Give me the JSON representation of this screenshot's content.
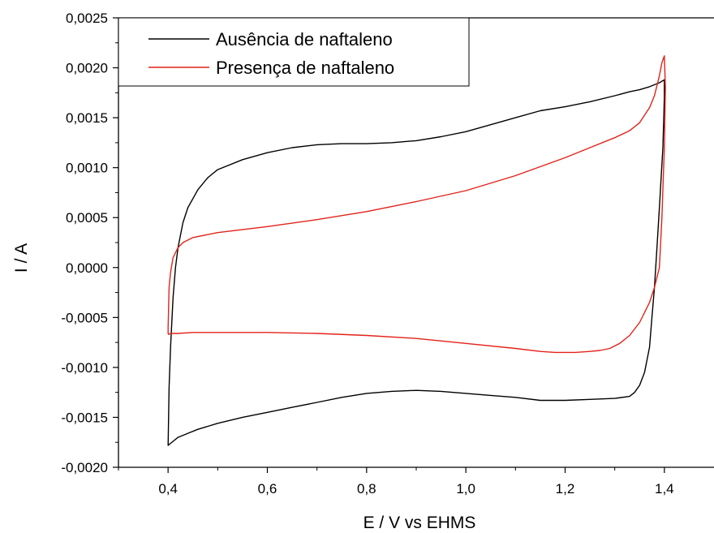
{
  "chart_data": {
    "type": "line",
    "title": "",
    "xlabel": "E / V vs EHMS",
    "ylabel": "I / A",
    "xlim": [
      0.3,
      1.5
    ],
    "ylim": [
      -0.002,
      0.0025
    ],
    "x_ticks": [
      0.4,
      0.6,
      0.8,
      1.0,
      1.2,
      1.4
    ],
    "x_tick_labels": [
      "0,4",
      "0,6",
      "0,8",
      "1,0",
      "1,2",
      "1,4"
    ],
    "y_ticks": [
      -0.002,
      -0.0015,
      -0.001,
      -0.0005,
      0.0,
      0.0005,
      0.001,
      0.0015,
      0.002,
      0.0025
    ],
    "y_tick_labels": [
      "-0,0020",
      "-0,0015",
      "-0,0010",
      "-0,0005",
      "0,0000",
      "0,0005",
      "0,0010",
      "0,0015",
      "0,0020",
      "0,0025"
    ],
    "grid": false,
    "legend_position": "top-left",
    "series": [
      {
        "name": "Ausência de naftaleno",
        "color": "#000000",
        "x": [
          0.4,
          0.402,
          0.405,
          0.41,
          0.415,
          0.42,
          0.43,
          0.44,
          0.46,
          0.48,
          0.5,
          0.55,
          0.6,
          0.65,
          0.7,
          0.75,
          0.8,
          0.85,
          0.9,
          0.95,
          1.0,
          1.05,
          1.1,
          1.15,
          1.2,
          1.25,
          1.3,
          1.33,
          1.35,
          1.37,
          1.39,
          1.4,
          1.4,
          1.397,
          1.39,
          1.385,
          1.38,
          1.375,
          1.37,
          1.36,
          1.35,
          1.34,
          1.33,
          1.3,
          1.25,
          1.2,
          1.15,
          1.1,
          1.05,
          1.0,
          0.95,
          0.9,
          0.85,
          0.8,
          0.75,
          0.7,
          0.65,
          0.6,
          0.55,
          0.5,
          0.48,
          0.46,
          0.44,
          0.42,
          0.41,
          0.405,
          0.4,
          0.4,
          0.401
        ],
        "y": [
          -0.00178,
          -0.0012,
          -0.0008,
          -0.0003,
          0.0,
          0.0002,
          0.00045,
          0.0006,
          0.00078,
          0.0009,
          0.00098,
          0.00108,
          0.00115,
          0.0012,
          0.00123,
          0.00124,
          0.00124,
          0.00125,
          0.00127,
          0.00131,
          0.00136,
          0.00143,
          0.0015,
          0.00157,
          0.00161,
          0.00166,
          0.00172,
          0.00176,
          0.00178,
          0.00181,
          0.00185,
          0.00188,
          0.0017,
          0.0012,
          0.0006,
          0.0002,
          -0.0002,
          -0.0005,
          -0.0008,
          -0.00105,
          -0.00118,
          -0.00125,
          -0.00129,
          -0.00131,
          -0.00132,
          -0.00133,
          -0.00133,
          -0.0013,
          -0.00128,
          -0.00126,
          -0.00124,
          -0.00123,
          -0.00124,
          -0.00126,
          -0.0013,
          -0.00135,
          -0.0014,
          -0.00145,
          -0.0015,
          -0.00156,
          -0.00159,
          -0.00162,
          -0.00166,
          -0.0017,
          -0.00174,
          -0.00176,
          -0.00178,
          -0.00178,
          -0.00178
        ]
      },
      {
        "name": "Presença de naftaleno",
        "color": "#e2231a",
        "x": [
          0.401,
          0.402,
          0.405,
          0.41,
          0.42,
          0.43,
          0.45,
          0.5,
          0.6,
          0.7,
          0.8,
          0.9,
          1.0,
          1.1,
          1.2,
          1.25,
          1.3,
          1.33,
          1.35,
          1.37,
          1.38,
          1.39,
          1.395,
          1.4,
          1.402,
          1.4,
          1.395,
          1.39,
          1.38,
          1.37,
          1.35,
          1.33,
          1.31,
          1.29,
          1.27,
          1.25,
          1.22,
          1.18,
          1.15,
          1.1,
          1.0,
          0.9,
          0.8,
          0.7,
          0.6,
          0.5,
          0.45,
          0.42,
          0.405,
          0.401,
          0.4,
          0.4,
          0.401
        ],
        "y": [
          -0.0004,
          -0.0002,
          -5e-05,
          0.0001,
          0.0002,
          0.00025,
          0.0003,
          0.00035,
          0.00041,
          0.00048,
          0.00056,
          0.00066,
          0.00077,
          0.00092,
          0.0011,
          0.0012,
          0.0013,
          0.00137,
          0.00145,
          0.0016,
          0.00172,
          0.00192,
          0.00205,
          0.00212,
          0.0018,
          0.0012,
          0.0005,
          0.0,
          -0.0002,
          -0.00035,
          -0.00055,
          -0.00068,
          -0.00076,
          -0.00081,
          -0.00083,
          -0.00084,
          -0.00085,
          -0.00085,
          -0.00084,
          -0.00081,
          -0.00076,
          -0.00071,
          -0.00068,
          -0.00066,
          -0.00065,
          -0.00065,
          -0.00065,
          -0.00066,
          -0.00066,
          -0.00067,
          -0.00066,
          -0.0006,
          -0.0004
        ]
      }
    ]
  }
}
